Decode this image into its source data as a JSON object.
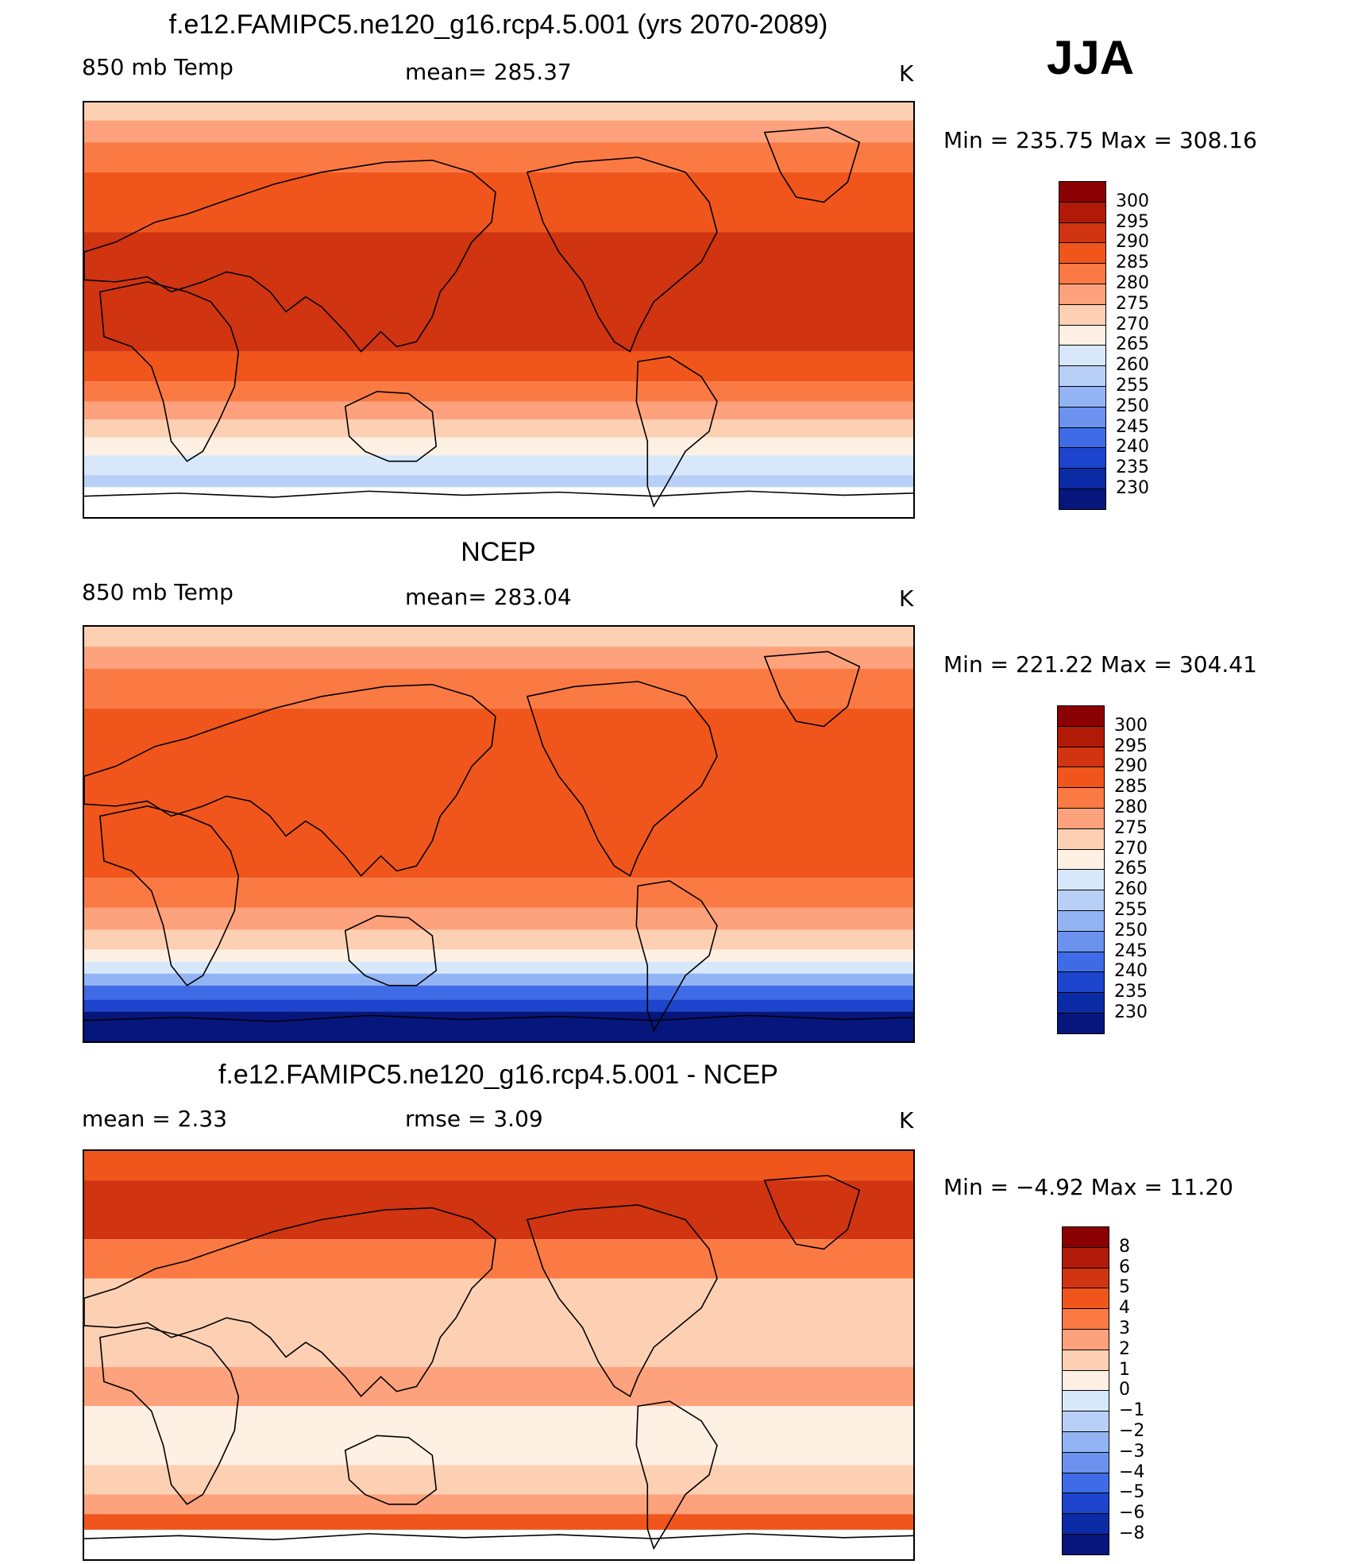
{
  "season": "JJA",
  "panels": [
    {
      "id": "model",
      "title": "f.e12.FAMIPC5.ne120_g16.rcp4.5.001 (yrs 2070-2089)",
      "left_label": "850 mb Temp",
      "center_label": "mean=  285.37",
      "units": "K",
      "minmax": "Min  =  235.75  Max  =  308.16",
      "colorbar": {
        "labels": [
          "300",
          "295",
          "290",
          "285",
          "280",
          "275",
          "270",
          "265",
          "260",
          "255",
          "250",
          "245",
          "240",
          "235",
          "230"
        ],
        "colors": [
          "#8b0000",
          "#b01a06",
          "#d03410",
          "#f0561c",
          "#fb7a44",
          "#fda27c",
          "#fdd0b4",
          "#fff0e4",
          "#d7e8fb",
          "#b8d0f8",
          "#93b4f4",
          "#6a92ee",
          "#3f6ce6",
          "#1c44cc",
          "#0b2aa6",
          "#06167c"
        ]
      },
      "bands": [
        {
          "y": 0,
          "h": 18,
          "c": "#fdd0b4"
        },
        {
          "y": 18,
          "h": 22,
          "c": "#fda27c"
        },
        {
          "y": 40,
          "h": 30,
          "c": "#fb7a44"
        },
        {
          "y": 70,
          "h": 60,
          "c": "#f0561c"
        },
        {
          "y": 130,
          "h": 120,
          "c": "#d03410"
        },
        {
          "y": 250,
          "h": 30,
          "c": "#f0561c"
        },
        {
          "y": 280,
          "h": 20,
          "c": "#fb7a44"
        },
        {
          "y": 300,
          "h": 18,
          "c": "#fda27c"
        },
        {
          "y": 318,
          "h": 18,
          "c": "#fdd0b4"
        },
        {
          "y": 336,
          "h": 18,
          "c": "#fff0e4"
        },
        {
          "y": 354,
          "h": 20,
          "c": "#d7e8fb"
        },
        {
          "y": 374,
          "h": 12,
          "c": "#b8d0f8"
        },
        {
          "y": 386,
          "h": 30,
          "c": "#ffffff"
        }
      ]
    },
    {
      "id": "obs",
      "title": "NCEP",
      "left_label": "850 mb Temp",
      "center_label": "mean=  283.04",
      "units": "K",
      "minmax": "Min  =  221.22  Max  =  304.41",
      "colorbar": {
        "labels": [
          "300",
          "295",
          "290",
          "285",
          "280",
          "275",
          "270",
          "265",
          "260",
          "255",
          "250",
          "245",
          "240",
          "235",
          "230"
        ],
        "colors": [
          "#8b0000",
          "#b01a06",
          "#d03410",
          "#f0561c",
          "#fb7a44",
          "#fda27c",
          "#fdd0b4",
          "#fff0e4",
          "#d7e8fb",
          "#b8d0f8",
          "#93b4f4",
          "#6a92ee",
          "#3f6ce6",
          "#1c44cc",
          "#0b2aa6",
          "#06167c"
        ]
      },
      "bands": [
        {
          "y": 0,
          "h": 20,
          "c": "#fdd0b4"
        },
        {
          "y": 20,
          "h": 22,
          "c": "#fda27c"
        },
        {
          "y": 42,
          "h": 40,
          "c": "#fb7a44"
        },
        {
          "y": 82,
          "h": 170,
          "c": "#f0561c"
        },
        {
          "y": 252,
          "h": 30,
          "c": "#fb7a44"
        },
        {
          "y": 282,
          "h": 22,
          "c": "#fda27c"
        },
        {
          "y": 304,
          "h": 20,
          "c": "#fdd0b4"
        },
        {
          "y": 324,
          "h": 12,
          "c": "#fff0e4"
        },
        {
          "y": 336,
          "h": 12,
          "c": "#d7e8fb"
        },
        {
          "y": 348,
          "h": 12,
          "c": "#93b4f4"
        },
        {
          "y": 360,
          "h": 14,
          "c": "#3f6ce6"
        },
        {
          "y": 374,
          "h": 12,
          "c": "#1c44cc"
        },
        {
          "y": 386,
          "h": 30,
          "c": "#06167c"
        }
      ]
    },
    {
      "id": "diff",
      "title": "f.e12.FAMIPC5.ne120_g16.rcp4.5.001 - NCEP",
      "left_label": "mean =      2.33",
      "center_label": "rmse =      3.09",
      "units": "K",
      "minmax": "Min  =    −4.92  Max  =    11.20",
      "colorbar": {
        "labels": [
          "8",
          "6",
          "5",
          "4",
          "3",
          "2",
          "1",
          "0",
          "−1",
          "−2",
          "−3",
          "−4",
          "−5",
          "−6",
          "−8"
        ],
        "colors": [
          "#8b0000",
          "#b01a06",
          "#d03410",
          "#f0561c",
          "#fb7a44",
          "#fda27c",
          "#fdd0b4",
          "#fff0e4",
          "#d7e8fb",
          "#b8d0f8",
          "#93b4f4",
          "#6a92ee",
          "#3f6ce6",
          "#1c44cc",
          "#0b2aa6",
          "#06167c"
        ]
      },
      "bands": [
        {
          "y": 0,
          "h": 30,
          "c": "#f0561c"
        },
        {
          "y": 30,
          "h": 60,
          "c": "#d03410"
        },
        {
          "y": 90,
          "h": 40,
          "c": "#fb7a44"
        },
        {
          "y": 130,
          "h": 90,
          "c": "#fdd0b4"
        },
        {
          "y": 220,
          "h": 40,
          "c": "#fda27c"
        },
        {
          "y": 260,
          "h": 60,
          "c": "#fff0e4"
        },
        {
          "y": 320,
          "h": 30,
          "c": "#fdd0b4"
        },
        {
          "y": 350,
          "h": 20,
          "c": "#fda27c"
        },
        {
          "y": 370,
          "h": 16,
          "c": "#f0561c"
        },
        {
          "y": 386,
          "h": 30,
          "c": "#ffffff"
        }
      ]
    }
  ]
}
